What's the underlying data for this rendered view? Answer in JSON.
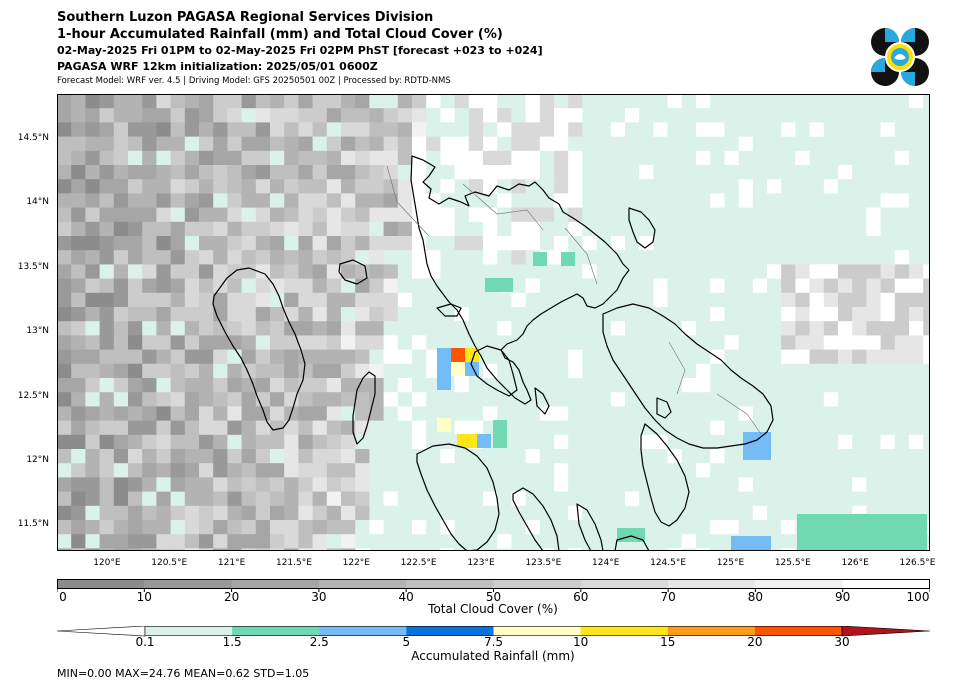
{
  "header": {
    "line1": "Southern Luzon PAGASA Regional Services Division",
    "line2": "1-hour Accumulated Rainfall (mm) and Total Cloud Cover (%)",
    "line3": "02-May-2025 Fri 01PM to 02-May-2025 Fri 02PM PhST [forecast +023 to +024]",
    "line4": "PAGASA WRF 12km initialization: 2025/05/01 0600Z",
    "line5": "Forecast Model: WRF ver. 4.5 | Driving Model: GFS 20250501 00Z | Processed by: RDTD-NMS"
  },
  "map": {
    "lon_ticks": [
      "120°E",
      "120.5°E",
      "121°E",
      "121.5°E",
      "122°E",
      "122.5°E",
      "123°E",
      "123.5°E",
      "124°E",
      "124.5°E",
      "125°E",
      "125.5°E",
      "126°E",
      "126.5°E"
    ],
    "lon_values": [
      120,
      120.5,
      121,
      121.5,
      122,
      122.5,
      123,
      123.5,
      124,
      124.5,
      125,
      125.5,
      126,
      126.5
    ],
    "lat_ticks": [
      "14.5°N",
      "14°N",
      "13.5°N",
      "13°N",
      "12.5°N",
      "12°N",
      "11.5°N"
    ],
    "lat_values": [
      14.5,
      14,
      13.5,
      13,
      12.5,
      12,
      11.5
    ],
    "lon_range": [
      119.6,
      126.6
    ],
    "lat_range": [
      11.3,
      14.85
    ],
    "colors": {
      "land_outline": "#000000",
      "ocean": "#ffffff",
      "light_rain": "#daf2ea"
    }
  },
  "cloud_colorbar": {
    "label": "Total Cloud Cover (%)",
    "ticks": [
      "0",
      "10",
      "20",
      "30",
      "40",
      "50",
      "60",
      "70",
      "80",
      "90",
      "100"
    ],
    "colors": [
      "#8c8c8c",
      "#999999",
      "#a6a6a6",
      "#b3b3b3",
      "#bfbfbf",
      "#cccccc",
      "#d9d9d9",
      "#e6e6e6",
      "#f2f2f2",
      "#ffffff"
    ]
  },
  "rain_colorbar": {
    "label": "Accumulated Rainfall (mm)",
    "ticks": [
      "0.1",
      "1.5",
      "2.5",
      "5",
      "7.5",
      "10",
      "15",
      "20",
      "30"
    ],
    "colors": [
      "#daf2ea",
      "#70d9b4",
      "#73bcf5",
      "#0873e0",
      "#ffffc6",
      "#ffe61a",
      "#ff9a1a",
      "#ff5500",
      "#b3121b"
    ]
  },
  "stats": "MIN=0.00   MAX=24.76   MEAN=0.62   STD=1.05"
}
